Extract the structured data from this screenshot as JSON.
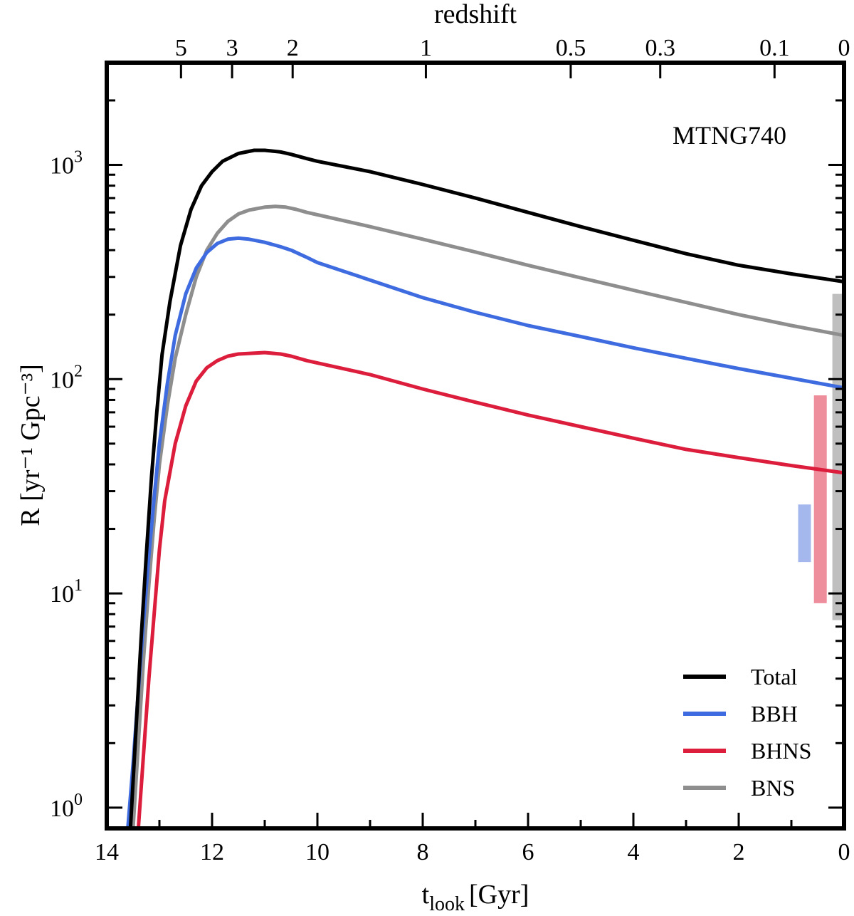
{
  "chart_data": {
    "type": "line",
    "title": "",
    "annotation": "MTNG740",
    "xlabel": {
      "main": "t",
      "sub": "look",
      "unit": "[Gyr]"
    },
    "ylabel": "R [yr⁻¹ Gpc⁻³]",
    "top_axis_label": "redshift",
    "xlim": [
      14,
      0
    ],
    "ylim": [
      0.8,
      3000
    ],
    "yscale": "log",
    "x_ticks": [
      {
        "value": 14,
        "label": "14"
      },
      {
        "value": 12,
        "label": "12"
      },
      {
        "value": 10,
        "label": "10"
      },
      {
        "value": 8,
        "label": "8"
      },
      {
        "value": 6,
        "label": "6"
      },
      {
        "value": 4,
        "label": "4"
      },
      {
        "value": 2,
        "label": "2"
      },
      {
        "value": 0,
        "label": "0"
      }
    ],
    "y_ticks": [
      {
        "value": 1,
        "base": "10",
        "exp": "0"
      },
      {
        "value": 10,
        "base": "10",
        "exp": "1"
      },
      {
        "value": 100,
        "base": "10",
        "exp": "2"
      },
      {
        "value": 1000,
        "base": "10",
        "exp": "3"
      }
    ],
    "top_ticks": [
      {
        "t": 12.59,
        "label": "5"
      },
      {
        "t": 11.62,
        "label": "3"
      },
      {
        "t": 10.47,
        "label": "2"
      },
      {
        "t": 7.94,
        "label": "1"
      },
      {
        "t": 5.19,
        "label": "0.5"
      },
      {
        "t": 3.49,
        "label": "0.3"
      },
      {
        "t": 1.32,
        "label": "0.1"
      },
      {
        "t": 0.0,
        "label": "0"
      }
    ],
    "series": [
      {
        "name": "Total",
        "color": "#000000",
        "x": [
          13.55,
          13.45,
          13.35,
          13.25,
          13.15,
          13.05,
          12.95,
          12.8,
          12.6,
          12.4,
          12.2,
          12.0,
          11.8,
          11.5,
          11.2,
          11.0,
          10.7,
          10.5,
          10.2,
          10.0,
          9.0,
          8.0,
          7.0,
          6.0,
          5.0,
          4.0,
          3.0,
          2.0,
          1.0,
          0.0
        ],
        "y": [
          0.8,
          2.2,
          6,
          15,
          35,
          70,
          130,
          230,
          420,
          620,
          800,
          930,
          1040,
          1130,
          1170,
          1170,
          1150,
          1120,
          1070,
          1040,
          930,
          810,
          700,
          600,
          515,
          445,
          385,
          340,
          310,
          285
        ]
      },
      {
        "name": "BBH",
        "color": "#3e6ce0",
        "x": [
          13.6,
          13.5,
          13.4,
          13.3,
          13.2,
          13.1,
          13.0,
          12.85,
          12.7,
          12.5,
          12.3,
          12.1,
          11.9,
          11.7,
          11.5,
          11.3,
          11.0,
          10.7,
          10.5,
          10.2,
          10.0,
          9.0,
          8.0,
          7.0,
          6.0,
          5.0,
          4.0,
          3.0,
          2.0,
          1.0,
          0.0
        ],
        "y": [
          0.8,
          1.6,
          3.5,
          7.5,
          15,
          28,
          50,
          95,
          160,
          250,
          330,
          390,
          430,
          450,
          455,
          450,
          435,
          415,
          400,
          370,
          350,
          290,
          240,
          205,
          178,
          158,
          140,
          125,
          112,
          101,
          91
        ]
      },
      {
        "name": "BHNS",
        "color": "#dc1d3c",
        "x": [
          13.4,
          13.3,
          13.2,
          13.1,
          13.0,
          12.9,
          12.7,
          12.5,
          12.3,
          12.1,
          11.9,
          11.7,
          11.5,
          11.0,
          10.7,
          10.5,
          10.2,
          10.0,
          9.0,
          8.0,
          7.0,
          6.0,
          5.0,
          4.0,
          3.0,
          2.0,
          1.0,
          0.0
        ],
        "y": [
          0.8,
          1.8,
          4,
          8,
          16,
          27,
          50,
          75,
          98,
          113,
          122,
          128,
          131,
          133,
          131,
          128,
          122,
          119,
          105,
          90,
          78,
          68,
          60,
          53,
          47,
          43,
          39.5,
          36.5
        ]
      },
      {
        "name": "BNS",
        "color": "#8e8e8e",
        "x": [
          13.5,
          13.4,
          13.3,
          13.2,
          13.1,
          13.0,
          12.85,
          12.7,
          12.5,
          12.3,
          12.1,
          11.9,
          11.7,
          11.5,
          11.3,
          11.0,
          10.8,
          10.6,
          10.4,
          10.2,
          10.0,
          9.0,
          8.0,
          7.0,
          6.0,
          5.0,
          4.0,
          3.0,
          2.0,
          1.0,
          0.0
        ],
        "y": [
          0.8,
          2,
          5,
          11,
          22,
          40,
          75,
          125,
          200,
          300,
          400,
          480,
          545,
          590,
          615,
          635,
          640,
          635,
          620,
          600,
          585,
          515,
          450,
          392,
          340,
          297,
          260,
          228,
          200,
          178,
          160
        ]
      }
    ],
    "observational_bands": [
      {
        "name": "BNS",
        "color": "#bfbfbf",
        "t": 0.1,
        "ymin": 7.5,
        "ymax": 250
      },
      {
        "name": "BHNS",
        "color": "#ee8e9c",
        "t": 0.45,
        "ymin": 9.0,
        "ymax": 84
      },
      {
        "name": "BBH",
        "color": "#a5b8ee",
        "t": 0.75,
        "ymin": 14,
        "ymax": 26
      }
    ],
    "legend": {
      "position": "bottom-right",
      "entries": [
        {
          "label": "Total",
          "color": "#000000"
        },
        {
          "label": "BBH",
          "color": "#3e6ce0"
        },
        {
          "label": "BHNS",
          "color": "#dc1d3c"
        },
        {
          "label": "BNS",
          "color": "#8e8e8e"
        }
      ]
    }
  }
}
